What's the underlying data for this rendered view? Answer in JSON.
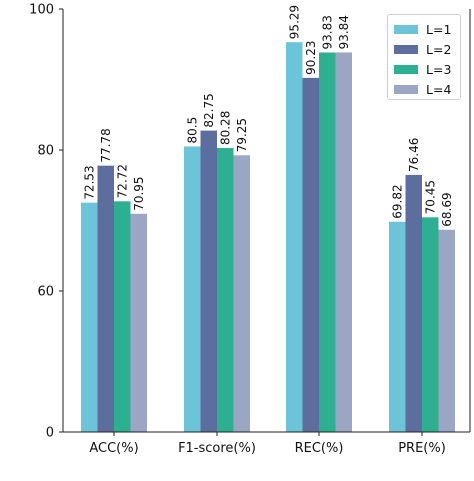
{
  "chart_data": {
    "type": "bar",
    "categories": [
      "ACC(%)",
      "F1-score(%)",
      "REC(%)",
      "PRE(%)"
    ],
    "series": [
      {
        "name": "L=1",
        "color": "#6cc4d9",
        "values": [
          72.53,
          80.5,
          95.29,
          69.82
        ],
        "labels": [
          "72.53",
          "80.5",
          "95.29",
          "69.82"
        ]
      },
      {
        "name": "L=2",
        "color": "#5d6e9e",
        "values": [
          77.78,
          82.75,
          90.23,
          76.46
        ],
        "labels": [
          "77.78",
          "82.75",
          "90.23",
          "76.46"
        ]
      },
      {
        "name": "L=3",
        "color": "#2db08f",
        "values": [
          72.72,
          80.28,
          93.83,
          70.45
        ],
        "labels": [
          "72.72",
          "80.28",
          "93.83",
          "70.45"
        ]
      },
      {
        "name": "L=4",
        "color": "#9aa6c4",
        "values": [
          70.95,
          79.25,
          93.84,
          68.69
        ],
        "labels": [
          "70.95",
          "79.25",
          "93.84",
          "68.69"
        ]
      }
    ],
    "y_ticks": [
      "0",
      "60",
      "80",
      "100"
    ],
    "axis_break": {
      "from": 0,
      "to": 60
    },
    "ylim": [
      0,
      100
    ],
    "grid": false,
    "legend_position": "top-right"
  }
}
